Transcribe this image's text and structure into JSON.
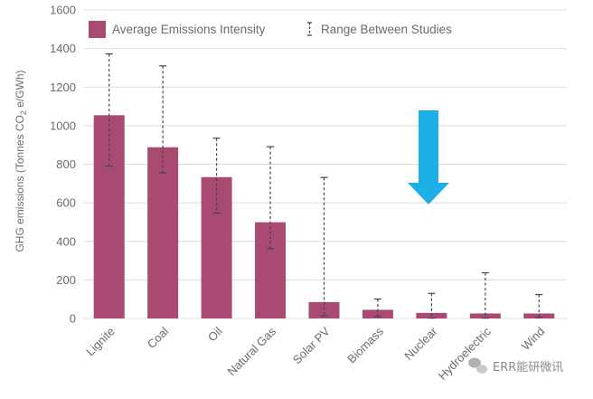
{
  "chart_data": {
    "type": "bar",
    "ylabel_main": "GHG emissions (Tonnes CO",
    "ylabel_sub": "2",
    "ylabel_tail": " e/GWh)",
    "ylim": [
      0,
      1600
    ],
    "yticks": [
      "0",
      "200",
      "400",
      "600",
      "800",
      "1000",
      "1200",
      "1400",
      "1600"
    ],
    "grid": true,
    "legend": {
      "position": "top-left",
      "bar_label": "Average Emissions Intensity",
      "range_label": "Range Between Studies"
    },
    "categories": [
      "Lignite",
      "Coal",
      "Oil",
      "Natural Gas",
      "Solar PV",
      "Biomass",
      "Nuclear",
      "Hydroelectric",
      "Wind"
    ],
    "values": [
      1054,
      888,
      733,
      499,
      85,
      45,
      29,
      26,
      26
    ],
    "range_low": [
      790,
      756,
      547,
      362,
      13,
      10,
      2,
      2,
      6
    ],
    "range_high": [
      1372,
      1310,
      935,
      891,
      731,
      101,
      130,
      237,
      124
    ],
    "colors": {
      "bar": "#a84a72",
      "arrow": "#1cb0e6",
      "grid": "#dcdcdc",
      "range": "#444444"
    },
    "annotation_icon": "down-arrow-icon"
  },
  "watermark": {
    "text": "ERR能研微讯",
    "icon": "wechat-icon"
  }
}
